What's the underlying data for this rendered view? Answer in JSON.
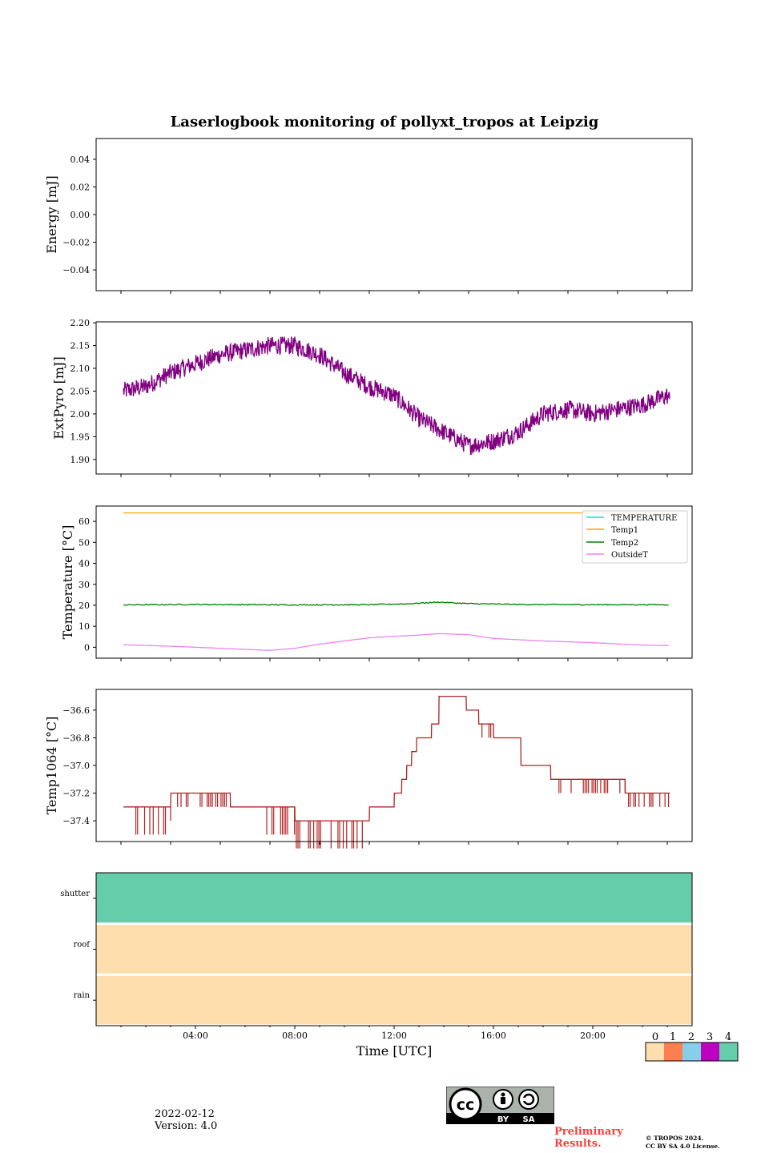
{
  "title": "Laserlogbook monitoring of pollyxt_tropos at Leipzig",
  "footer": {
    "date": "2022-02-12",
    "version": "Version: 4.0",
    "preliminary_line1": "Preliminary",
    "preliminary_line2": "Results.",
    "copyright_line1": "© TROPOS 2024.",
    "copyright_line2": "CC BY SA 4.0 License.",
    "cc_by": "BY",
    "cc_sa": "SA"
  },
  "chart_data": [
    {
      "id": "energy",
      "type": "line",
      "ylabel": "Energy [mJ]",
      "ylim": [
        -0.055,
        0.055
      ],
      "yticks": [
        0.04,
        0.02,
        0.0,
        -0.02,
        -0.04
      ],
      "ytick_labels": [
        "0.04",
        "0.02",
        "0.00",
        "−0.02",
        "−0.04"
      ],
      "xlim_hours": [
        0,
        24
      ],
      "series": []
    },
    {
      "id": "extpyro",
      "type": "line",
      "ylabel": "ExtPyro [mJ]",
      "ylim": [
        1.868,
        2.202
      ],
      "yticks": [
        2.2,
        2.15,
        2.1,
        2.05,
        2.0,
        1.95,
        1.9
      ],
      "ytick_labels": [
        "2.20",
        "2.15",
        "2.10",
        "2.05",
        "2.00",
        "1.95",
        "1.90"
      ],
      "xlim_hours": [
        0,
        24
      ],
      "series": [
        {
          "name": "ExtPyro",
          "color": "#800080",
          "x_hours": [
            1.1,
            2,
            3,
            4,
            5,
            6,
            7,
            8,
            9,
            10,
            11,
            12,
            13,
            14,
            15,
            16,
            17,
            18,
            19,
            20,
            21,
            22,
            23,
            23.1
          ],
          "values": [
            2.05,
            2.06,
            2.09,
            2.11,
            2.13,
            2.14,
            2.15,
            2.15,
            2.13,
            2.09,
            2.06,
            2.04,
            1.99,
            1.96,
            1.93,
            1.94,
            1.96,
            2.0,
            2.01,
            2.0,
            2.01,
            2.02,
            2.04,
            2.03
          ],
          "noise_amplitude": 0.02
        }
      ]
    },
    {
      "id": "temperature",
      "type": "line",
      "ylabel": "Temperature [°C]",
      "ylim": [
        -5.2,
        67.3
      ],
      "yticks": [
        60,
        50,
        40,
        30,
        20,
        10,
        0
      ],
      "ytick_labels": [
        "60",
        "50",
        "40",
        "30",
        "20",
        "10",
        "0"
      ],
      "xlim_hours": [
        0,
        24
      ],
      "legend": [
        "TEMPERATURE",
        "Temp1",
        "Temp2",
        "OutsideT"
      ],
      "legend_position": "top-right",
      "series": [
        {
          "name": "TEMPERATURE",
          "color": "#00e5e5",
          "x_hours": [],
          "values": []
        },
        {
          "name": "Temp1",
          "color": "#ffa500",
          "x_hours": [
            1.1,
            23.1
          ],
          "values": [
            64,
            64
          ]
        },
        {
          "name": "Temp2",
          "color": "#008000",
          "x_hours": [
            1.1,
            4,
            8,
            11,
            12.5,
            13.8,
            15,
            17,
            20,
            23.1
          ],
          "values": [
            20.2,
            20.4,
            20.2,
            20.3,
            20.7,
            21.5,
            20.8,
            20.4,
            20.3,
            20.3
          ]
        },
        {
          "name": "OutsideT",
          "color": "#ee82ee",
          "x_hours": [
            1.1,
            3,
            5,
            7,
            8,
            9,
            10,
            11,
            12,
            13,
            13.8,
            15,
            16,
            18,
            20,
            22,
            23.1
          ],
          "values": [
            1.2,
            0.5,
            -0.5,
            -1.5,
            -0.5,
            1.5,
            3.0,
            4.5,
            5.2,
            5.8,
            6.5,
            6.0,
            4.2,
            3.0,
            2.2,
            1.0,
            0.8
          ]
        }
      ]
    },
    {
      "id": "temp1064",
      "type": "line",
      "ylabel": "Temp1064 [°C]",
      "ylim": [
        -37.55,
        -36.45
      ],
      "yticks": [
        -36.6,
        -36.8,
        -37.0,
        -37.2,
        -37.4
      ],
      "ytick_labels": [
        "−36.6",
        "−36.8",
        "−37.0",
        "−37.2",
        "−37.4"
      ],
      "xlim_hours": [
        0,
        24
      ],
      "series": [
        {
          "name": "Temp1064",
          "color": "#b22222",
          "x_hours": [
            1.1,
            3.0,
            3.01,
            5.4,
            5.41,
            6.5,
            6.51,
            8.0,
            8.01,
            11.0,
            11.01,
            12.0,
            12.01,
            12.3,
            12.31,
            12.5,
            12.51,
            12.7,
            12.71,
            12.9,
            12.91,
            13.5,
            13.51,
            13.8,
            13.81,
            14.9,
            14.91,
            15.4,
            15.41,
            16.0,
            16.01,
            17.1,
            17.11,
            18.3,
            18.31,
            21.3,
            21.31,
            23.1
          ],
          "values": [
            -37.3,
            -37.3,
            -37.2,
            -37.2,
            -37.3,
            -37.3,
            -37.3,
            -37.3,
            -37.4,
            -37.4,
            -37.3,
            -37.3,
            -37.2,
            -37.2,
            -37.1,
            -37.1,
            -37.0,
            -37.0,
            -36.9,
            -36.9,
            -36.8,
            -36.8,
            -36.7,
            -36.7,
            -36.5,
            -36.5,
            -36.6,
            -36.6,
            -36.7,
            -36.7,
            -36.8,
            -36.8,
            -37.0,
            -37.0,
            -37.1,
            -37.1,
            -37.2,
            -37.2
          ],
          "spikes": [
            {
              "from_hour": 1.6,
              "to_hour": 2.9,
              "amplitude": -0.2
            },
            {
              "from_hour": 3.0,
              "to_hour": 5.4,
              "amplitude": -0.1
            },
            {
              "from_hour": 6.8,
              "to_hour": 10.8,
              "amplitude": -0.2
            },
            {
              "from_hour": 15.4,
              "to_hour": 16.0,
              "amplitude": -0.1
            },
            {
              "from_hour": 18.5,
              "to_hour": 23.1,
              "amplitude": -0.1
            }
          ]
        }
      ]
    },
    {
      "id": "status",
      "type": "heatmap",
      "xlabel": "Time [UTC]",
      "xlim_hours": [
        0,
        24
      ],
      "xticks_hours": [
        4,
        8,
        12,
        16,
        20
      ],
      "xtick_labels": [
        "04:00",
        "08:00",
        "12:00",
        "16:00",
        "20:00"
      ],
      "rows": [
        "shutter",
        "roof",
        "rain"
      ],
      "row_states": [
        4,
        0,
        0
      ],
      "colorbar": {
        "labels": [
          "0",
          "1",
          "2",
          "3",
          "4"
        ],
        "colors": [
          "#fddeac",
          "#fd7f50",
          "#87ceea",
          "#c000c0",
          "#66cdaa"
        ]
      }
    }
  ]
}
